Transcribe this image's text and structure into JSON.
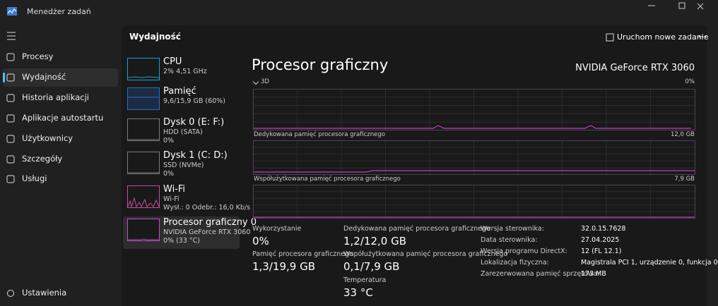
{
  "title_bar": {
    "title": "Menedżer zadań"
  },
  "nav": {
    "items": [
      "Procesy",
      "Wydajność",
      "Historia aplikacji",
      "Aplikacje autostartu",
      "Użytkownicy",
      "Szczegóły",
      "Usługi"
    ],
    "settings": "Ustawienia"
  },
  "header": {
    "title": "Wydajność",
    "button": "Uruchom nowe zadanie"
  },
  "devices": [
    {
      "name": "CPU",
      "lines": [
        "2% 4,51 GHz"
      ]
    },
    {
      "name": "Pamięć",
      "lines": [
        "9,6/15,9 GB (60%)"
      ]
    },
    {
      "name": "Dysk 0 (E: F:)",
      "lines": [
        "HDD (SATA)",
        "0%"
      ]
    },
    {
      "name": "Dysk 1 (C: D:)",
      "lines": [
        "SSD (NVMe)",
        "0%"
      ]
    },
    {
      "name": "Wi-Fi",
      "lines": [
        "Wi-Fi",
        "Wysł.: 0 Odebr.: 16,0 Kb/s"
      ]
    },
    {
      "name": "Procesor graficzny 0",
      "lines": [
        "NVIDIA GeForce RTX 3060",
        "0% (33 °C)"
      ]
    }
  ],
  "detail": {
    "title": "Procesor graficzny",
    "gpu_name": "NVIDIA GeForce RTX 3060",
    "graphs": [
      {
        "label": "3D",
        "max": "0%"
      },
      {
        "label": "Dedykowana pamięć procesora graficznego",
        "max": "12,0 GB"
      },
      {
        "label": "Współużytkowana pamięć procesora graficznego",
        "max": "7,9 GB"
      }
    ],
    "stats": [
      {
        "label": "Wykorzystanie",
        "value": "0%"
      },
      {
        "label": "Pamięć procesora graficznego",
        "value": "1,3/19,9 GB"
      },
      {
        "label": "Dedykowana pamięć procesora graficznego",
        "value": "1,2/12,0 GB"
      },
      {
        "label": "Współużytkowana pamięć procesora graficznego",
        "value": "0,1/7,9 GB"
      },
      {
        "label": "Temperatura",
        "value": "33 °C"
      }
    ],
    "info": [
      {
        "label": "Wersja sterownika:",
        "value": "32.0.15.7628"
      },
      {
        "label": "Data sterownika:",
        "value": "27.04.2025"
      },
      {
        "label": "Wersja programu DirectX:",
        "value": "12 (FL 12.1)"
      },
      {
        "label": "Lokalizacja fizyczna:",
        "value": "Magistrala PCI 1, urządzenie 0, funkcja 0"
      },
      {
        "label": "Zarezerwowana pamięć sprzętowa:",
        "value": "173 MB"
      }
    ]
  }
}
